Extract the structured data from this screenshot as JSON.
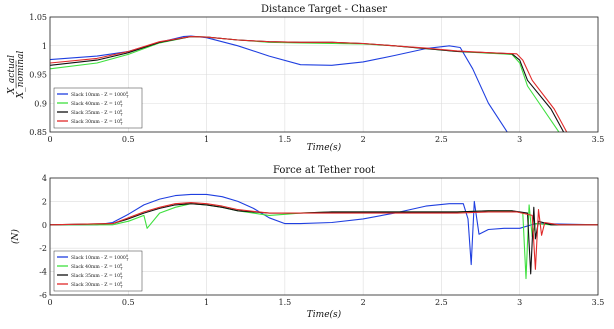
{
  "chart_data": [
    {
      "type": "line",
      "title": "Distance Target - Chaser",
      "xlabel": "Time(s)",
      "ylabel": "X_actual / X_nominal",
      "xlim": [
        0,
        3.5
      ],
      "ylim": [
        0.85,
        1.05
      ],
      "xticks": [
        "0",
        "0.5",
        "1",
        "1.5",
        "2",
        "2.5",
        "3",
        "3.5"
      ],
      "yticks": [
        "0.85",
        "0.9",
        "0.95",
        "1",
        "1.05"
      ],
      "grid": true,
      "legend_position": "bottom-left",
      "series": [
        {
          "name": "Slack 10mm - Z = 1000^(0)_(T)",
          "color": "#1f3fe0",
          "x": [
            0,
            0.3,
            0.5,
            0.7,
            0.85,
            0.9,
            1.0,
            1.2,
            1.4,
            1.6,
            1.8,
            2.0,
            2.2,
            2.4,
            2.55,
            2.62,
            2.7,
            2.8,
            2.92
          ],
          "y": [
            0.976,
            0.982,
            0.99,
            1.006,
            1.016,
            1.017,
            1.014,
            1.0,
            0.982,
            0.967,
            0.966,
            0.972,
            0.983,
            0.995,
            1.0,
            0.997,
            0.96,
            0.9,
            0.85
          ]
        },
        {
          "name": "Slack 40mm - Z = 10^(0)_(T)",
          "color": "#3ee03e",
          "x": [
            0,
            0.3,
            0.5,
            0.7,
            0.9,
            1.0,
            1.2,
            1.4,
            1.6,
            1.8,
            2.0,
            2.2,
            2.4,
            2.6,
            2.8,
            2.95,
            3.0,
            3.05,
            3.15,
            3.25
          ],
          "y": [
            0.96,
            0.97,
            0.985,
            1.005,
            1.016,
            1.015,
            1.01,
            1.006,
            1.005,
            1.004,
            1.003,
            1.0,
            0.995,
            0.99,
            0.987,
            0.985,
            0.97,
            0.93,
            0.89,
            0.85
          ]
        },
        {
          "name": "Slack 35mm - Z = 10^(0)_(T)",
          "color": "#111111",
          "x": [
            0,
            0.3,
            0.5,
            0.7,
            0.9,
            1.0,
            1.2,
            1.4,
            1.6,
            1.8,
            2.0,
            2.2,
            2.4,
            2.6,
            2.8,
            2.95,
            3.0,
            3.05,
            3.2,
            3.28
          ],
          "y": [
            0.966,
            0.975,
            0.988,
            1.006,
            1.016,
            1.015,
            1.01,
            1.007,
            1.006,
            1.006,
            1.004,
            1.0,
            0.995,
            0.99,
            0.988,
            0.986,
            0.975,
            0.94,
            0.89,
            0.85
          ]
        },
        {
          "name": "Slack 30mm - Z = 10^(0)_(T)",
          "color": "#e02a2a",
          "x": [
            0,
            0.3,
            0.5,
            0.7,
            0.9,
            1.0,
            1.2,
            1.4,
            1.6,
            1.8,
            2.0,
            2.2,
            2.4,
            2.6,
            2.8,
            2.98,
            3.02,
            3.08,
            3.22,
            3.3
          ],
          "y": [
            0.97,
            0.978,
            0.99,
            1.007,
            1.016,
            1.015,
            1.01,
            1.007,
            1.006,
            1.006,
            1.004,
            1.0,
            0.996,
            0.991,
            0.988,
            0.986,
            0.975,
            0.94,
            0.89,
            0.85
          ]
        }
      ]
    },
    {
      "type": "line",
      "title": "Force at Tether root",
      "xlabel": "Time(s)",
      "ylabel": "(N)",
      "xlim": [
        0,
        3.5
      ],
      "ylim": [
        -6,
        4
      ],
      "xticks": [
        "0",
        "0.5",
        "1",
        "1.5",
        "2",
        "2.5",
        "3",
        "3.5"
      ],
      "yticks": [
        "-6",
        "-4",
        "-2",
        "0",
        "2",
        "4"
      ],
      "grid": true,
      "legend_position": "bottom-left",
      "series": [
        {
          "name": "Slack 10mm - Z = 1000^(0)_(T)",
          "color": "#1f3fe0",
          "x": [
            0,
            0.3,
            0.4,
            0.5,
            0.6,
            0.7,
            0.8,
            0.9,
            1.0,
            1.1,
            1.2,
            1.3,
            1.4,
            1.5,
            1.6,
            1.8,
            2.0,
            2.2,
            2.4,
            2.55,
            2.64,
            2.67,
            2.69,
            2.71,
            2.74,
            2.8,
            2.9,
            3.0,
            3.1,
            3.5
          ],
          "y": [
            0,
            0,
            0.2,
            0.9,
            1.7,
            2.2,
            2.5,
            2.6,
            2.6,
            2.4,
            2.0,
            1.4,
            0.6,
            0.1,
            0.1,
            0.2,
            0.5,
            1.0,
            1.6,
            1.8,
            1.8,
            0.5,
            -3.4,
            2.0,
            -0.8,
            -0.4,
            -0.3,
            -0.3,
            0.1,
            0
          ]
        },
        {
          "name": "Slack 40mm - Z = 10^(0)_(T)",
          "color": "#3ee03e",
          "x": [
            0,
            0.4,
            0.5,
            0.6,
            0.62,
            0.7,
            0.8,
            0.9,
            1.0,
            1.1,
            1.2,
            1.4,
            1.5,
            1.6,
            1.8,
            2.0,
            2.2,
            2.4,
            2.6,
            2.8,
            2.95,
            3.02,
            3.04,
            3.06,
            3.08,
            3.1,
            3.2,
            3.5
          ],
          "y": [
            0,
            0,
            0.3,
            0.8,
            -0.3,
            1.0,
            1.5,
            1.8,
            1.7,
            1.5,
            1.2,
            0.8,
            0.9,
            1.0,
            1.1,
            1.1,
            1.1,
            1.1,
            1.1,
            1.2,
            1.2,
            1.0,
            -4.6,
            1.7,
            -1.0,
            0.1,
            0,
            0
          ]
        },
        {
          "name": "Slack 35mm - Z = 10^(0)_(T)",
          "color": "#111111",
          "x": [
            0,
            0.4,
            0.5,
            0.6,
            0.7,
            0.8,
            0.9,
            1.0,
            1.1,
            1.2,
            1.4,
            1.5,
            1.6,
            1.8,
            2.0,
            2.2,
            2.4,
            2.6,
            2.8,
            2.95,
            3.05,
            3.07,
            3.09,
            3.1,
            3.12,
            3.2,
            3.5
          ],
          "y": [
            0,
            0.1,
            0.5,
            1.0,
            1.4,
            1.7,
            1.8,
            1.7,
            1.5,
            1.2,
            1.0,
            1.0,
            1.0,
            1.1,
            1.1,
            1.1,
            1.1,
            1.1,
            1.2,
            1.2,
            1.0,
            -4.2,
            1.5,
            -1.2,
            0.3,
            0,
            0
          ]
        },
        {
          "name": "Slack 30mm - Z = 10^(0)_(T)",
          "color": "#e02a2a",
          "x": [
            0,
            0.4,
            0.5,
            0.6,
            0.7,
            0.8,
            0.9,
            1.0,
            1.1,
            1.2,
            1.4,
            1.5,
            1.6,
            1.8,
            2.0,
            2.2,
            2.4,
            2.6,
            2.8,
            2.98,
            3.08,
            3.1,
            3.12,
            3.14,
            3.16,
            3.25,
            3.5
          ],
          "y": [
            0,
            0.1,
            0.6,
            1.1,
            1.5,
            1.8,
            1.9,
            1.8,
            1.6,
            1.3,
            1.0,
            1.0,
            1.0,
            1.0,
            1.0,
            1.0,
            1.0,
            1.0,
            1.1,
            1.1,
            0.8,
            -3.8,
            1.3,
            -0.9,
            0.2,
            0,
            0
          ]
        }
      ]
    }
  ]
}
